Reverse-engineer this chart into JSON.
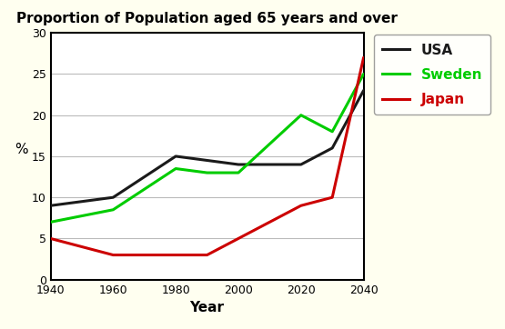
{
  "title": "Proportion of Population aged 65 years and over",
  "xlabel": "Year",
  "ylabel": "%",
  "years": [
    1940,
    1960,
    1980,
    1990,
    2000,
    2020,
    2030,
    2040
  ],
  "usa": [
    9,
    10,
    15,
    14.5,
    14,
    14,
    16,
    23
  ],
  "sweden": [
    7,
    8.5,
    13.5,
    13,
    13,
    20,
    18,
    25
  ],
  "japan": [
    5,
    3,
    3,
    3,
    5,
    9,
    10,
    27
  ],
  "usa_color": "#1a1a1a",
  "sweden_color": "#00cc00",
  "japan_color": "#cc0000",
  "ylim": [
    0,
    30
  ],
  "xlim": [
    1940,
    2040
  ],
  "xticks": [
    1940,
    1960,
    1980,
    2000,
    2020,
    2040
  ],
  "yticks": [
    0,
    5,
    10,
    15,
    20,
    25,
    30
  ],
  "fig_bg_color": "#fffff0",
  "plot_bg_color": "#ffffff",
  "legend_labels": [
    "USA",
    "Sweden",
    "Japan"
  ],
  "legend_colors": [
    "#1a1a1a",
    "#00cc00",
    "#cc0000"
  ],
  "title_fontsize": 11,
  "axis_label_fontsize": 11,
  "tick_fontsize": 9,
  "legend_fontsize": 11
}
